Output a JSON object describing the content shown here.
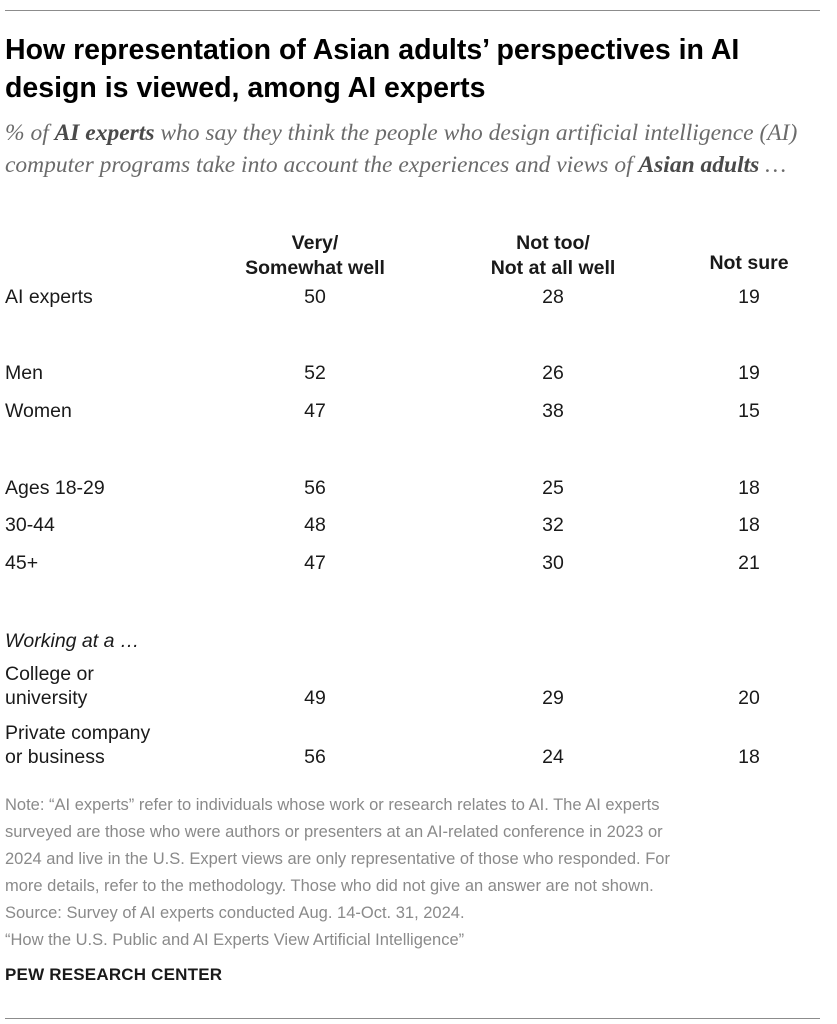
{
  "title": "How representation of Asian adults’ perspectives in AI design is viewed, among AI experts",
  "subtitle": {
    "prefix": "% of ",
    "bold1": "AI experts",
    "middle": " who say they think the people who design artificial intelligence (AI) computer programs take into account the experiences and views of ",
    "bold2": "Asian adults",
    "suffix": " …"
  },
  "chart_data": {
    "type": "table",
    "columns": [
      {
        "line1": "Very/",
        "line2": "Somewhat well"
      },
      {
        "line1": "Not too/",
        "line2": "Not at all well"
      },
      {
        "line1": "",
        "line2": "Not sure"
      }
    ],
    "section_heading": "Working at a …",
    "rows": [
      {
        "label": "AI experts",
        "values": [
          50,
          28,
          19
        ]
      },
      {
        "label": "Men",
        "values": [
          52,
          26,
          19
        ]
      },
      {
        "label": "Women",
        "values": [
          47,
          38,
          15
        ]
      },
      {
        "label": "Ages 18-29",
        "values": [
          56,
          25,
          18
        ]
      },
      {
        "label": "30-44",
        "values": [
          48,
          32,
          18
        ]
      },
      {
        "label": "45+",
        "values": [
          47,
          30,
          21
        ]
      },
      {
        "label": "College or university",
        "label_lines": [
          "College or",
          "university"
        ],
        "values": [
          49,
          29,
          20
        ]
      },
      {
        "label": "Private company or business",
        "label_lines": [
          "Private company",
          "or business"
        ],
        "values": [
          56,
          24,
          18
        ]
      }
    ]
  },
  "note_lines": [
    "Note: “AI experts” refer to individuals whose work or research relates to AI. The AI experts",
    "surveyed are those who were authors or presenters at an AI-related conference in 2023 or",
    "2024 and live in the U.S. Expert views are only representative of those who responded. For",
    "more details, refer to the methodology. Those who did not give an answer are not shown.",
    "Source: Survey of AI experts conducted Aug. 14-Oct. 31, 2024.",
    "“How the U.S. Public and AI Experts View Artificial Intelligence”"
  ],
  "brand": "PEW RESEARCH CENTER"
}
